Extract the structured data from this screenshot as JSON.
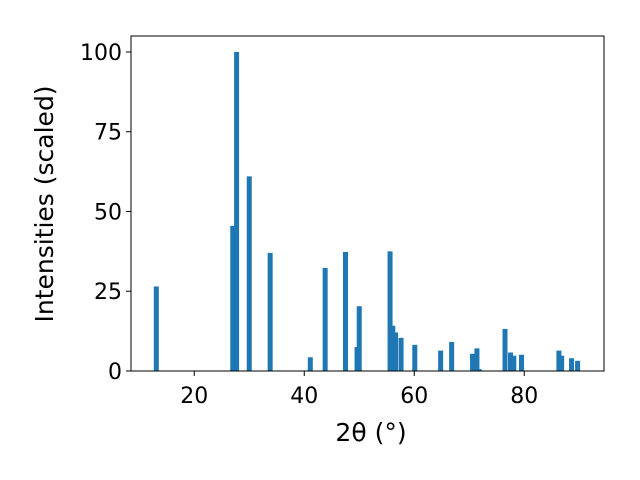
{
  "chart_data": {
    "type": "bar",
    "xlabel": "2θ (°)",
    "ylabel": "Intensities (scaled)",
    "xlim": [
      8.5,
      94.5
    ],
    "ylim": [
      0,
      105
    ],
    "xticks": [
      20,
      40,
      60,
      80
    ],
    "yticks": [
      0,
      25,
      50,
      75,
      100
    ],
    "bar_color": "#1f77b4",
    "grid": false,
    "legend": "none",
    "bars": [
      {
        "x": 13.1,
        "y": 26.5
      },
      {
        "x": 27.0,
        "y": 45.5
      },
      {
        "x": 27.7,
        "y": 100
      },
      {
        "x": 30.0,
        "y": 61
      },
      {
        "x": 33.8,
        "y": 37
      },
      {
        "x": 41.1,
        "y": 4.3
      },
      {
        "x": 43.8,
        "y": 32.3
      },
      {
        "x": 47.5,
        "y": 37.3
      },
      {
        "x": 49.6,
        "y": 7.5
      },
      {
        "x": 50.0,
        "y": 20.3
      },
      {
        "x": 55.6,
        "y": 37.5
      },
      {
        "x": 56.1,
        "y": 14.2
      },
      {
        "x": 56.6,
        "y": 12.1
      },
      {
        "x": 57.6,
        "y": 10.4
      },
      {
        "x": 60.1,
        "y": 8.2
      },
      {
        "x": 64.8,
        "y": 6.4
      },
      {
        "x": 66.8,
        "y": 9.1
      },
      {
        "x": 70.6,
        "y": 5.4
      },
      {
        "x": 71.4,
        "y": 7.1
      },
      {
        "x": 71.8,
        "y": 0.6
      },
      {
        "x": 76.5,
        "y": 13.2
      },
      {
        "x": 77.5,
        "y": 5.8
      },
      {
        "x": 78.1,
        "y": 4.8
      },
      {
        "x": 79.5,
        "y": 5.1
      },
      {
        "x": 86.3,
        "y": 6.4
      },
      {
        "x": 86.8,
        "y": 4.8
      },
      {
        "x": 88.6,
        "y": 4.0
      },
      {
        "x": 89.7,
        "y": 3.2
      }
    ]
  }
}
